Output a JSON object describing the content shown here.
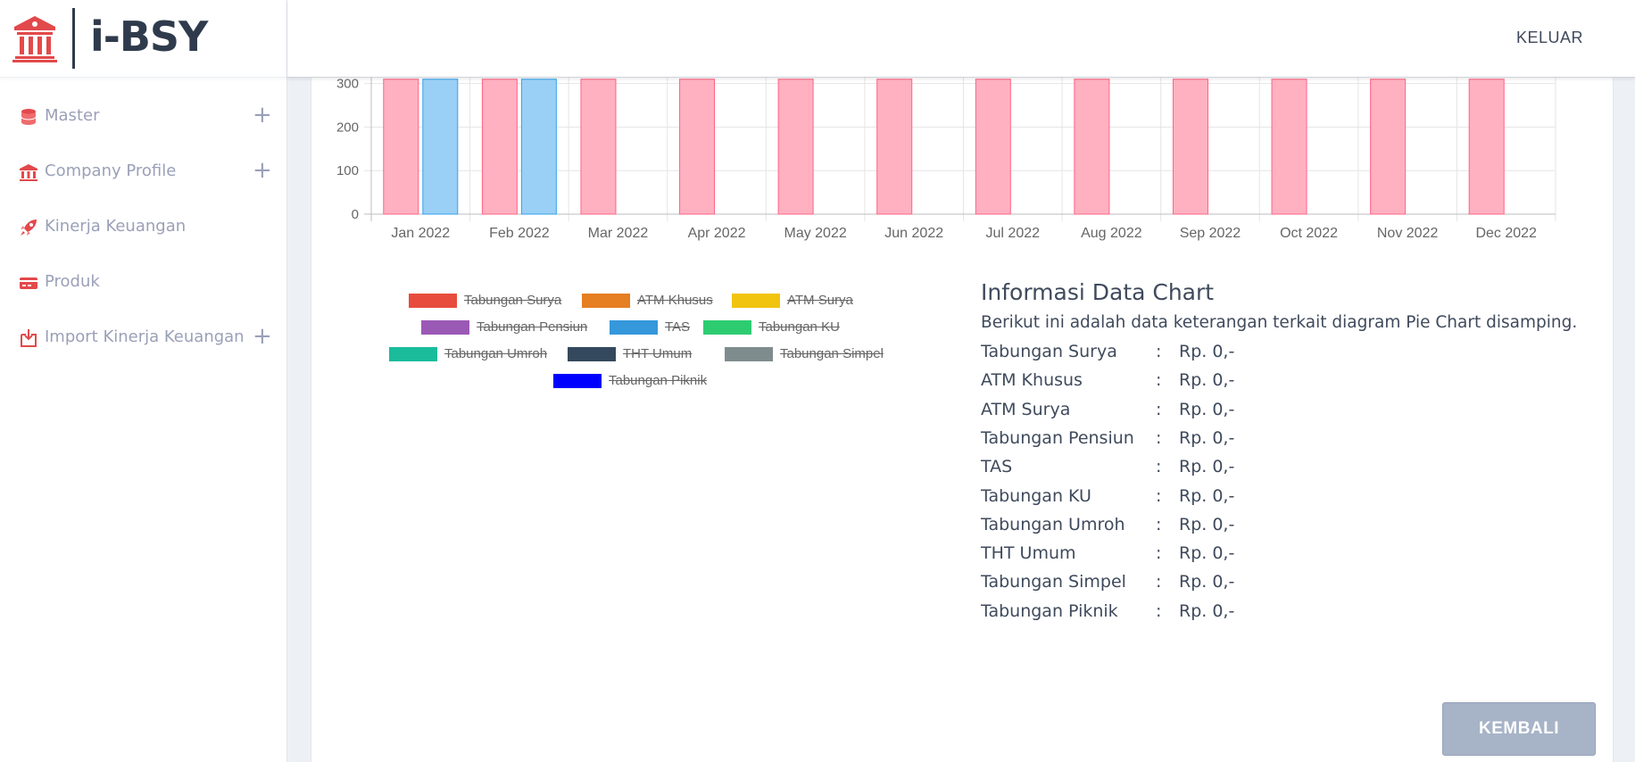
{
  "brand": {
    "name": "i-BSY"
  },
  "sidebar": {
    "items": [
      {
        "label": "Master",
        "icon": "database-icon",
        "expandable": true,
        "plus": "+"
      },
      {
        "label": "Company Profile",
        "icon": "bank-icon",
        "expandable": true,
        "plus": "+"
      },
      {
        "label": "Kinerja Keuangan",
        "icon": "rocket-icon",
        "expandable": false
      },
      {
        "label": "Produk",
        "icon": "card-icon",
        "expandable": false
      },
      {
        "label": "Import Kinerja Keuangan",
        "icon": "import-icon",
        "expandable": true,
        "plus": "+"
      }
    ],
    "accent": "#e2494b"
  },
  "topbar": {
    "logout_label": "KELUAR"
  },
  "chart_data": {
    "type": "bar",
    "categories": [
      "Jan 2022",
      "Feb 2022",
      "Mar 2022",
      "Apr 2022",
      "May 2022",
      "Jun 2022",
      "Jul 2022",
      "Aug 2022",
      "Sep 2022",
      "Oct 2022",
      "Nov 2022",
      "Dec 2022"
    ],
    "y_ticks": [
      0,
      100,
      200,
      300
    ],
    "ylim_visible": [
      0,
      310
    ],
    "grid": true,
    "series": [
      {
        "color": "#ffb1c1",
        "stroke": "#ff6384",
        "values": [
          310,
          310,
          310,
          310,
          310,
          310,
          310,
          310,
          310,
          310,
          310,
          310
        ]
      },
      {
        "color": "#9ad0f5",
        "stroke": "#36a2eb",
        "values": [
          310,
          310,
          null,
          null,
          null,
          null,
          null,
          null,
          null,
          null,
          null,
          null
        ]
      }
    ],
    "note": "top of chart scrolled out of view; bars extend beyond the visible top"
  },
  "legend": {
    "rows": [
      [
        {
          "label": "Tabungan Surya",
          "color": "#e74c3c"
        },
        {
          "label": "ATM Khusus",
          "color": "#e67e22"
        },
        {
          "label": "ATM Surya",
          "color": "#f1c40f"
        }
      ],
      [
        {
          "label": "Tabungan Pensiun",
          "color": "#9b59b6"
        },
        {
          "label": "TAS",
          "color": "#3498db"
        },
        {
          "label": "Tabungan KU",
          "color": "#2ecc71"
        }
      ],
      [
        {
          "label": "Tabungan Umroh",
          "color": "#1abc9c"
        },
        {
          "label": "THT Umum",
          "color": "#34495e"
        },
        {
          "label": "Tabungan Simpel",
          "color": "#7f8c8d"
        }
      ],
      [
        {
          "label": "Tabungan Piknik",
          "color": "#0000ff"
        }
      ]
    ]
  },
  "info": {
    "title": "Informasi Data Chart",
    "description": "Berikut ini adalah data keterangan terkait diagram Pie Chart disamping.",
    "rows": [
      {
        "name": "Tabungan Surya",
        "colon": ":",
        "value": "Rp. 0,-"
      },
      {
        "name": "ATM Khusus",
        "colon": ":",
        "value": "Rp. 0,-"
      },
      {
        "name": "ATM Surya",
        "colon": ":",
        "value": "Rp. 0,-"
      },
      {
        "name": "Tabungan Pensiun",
        "colon": ":",
        "value": "Rp. 0,-"
      },
      {
        "name": "TAS",
        "colon": ":",
        "value": "Rp. 0,-"
      },
      {
        "name": "Tabungan KU",
        "colon": ":",
        "value": "Rp. 0,-"
      },
      {
        "name": "Tabungan Umroh",
        "colon": ":",
        "value": "Rp. 0,-"
      },
      {
        "name": "THT Umum",
        "colon": ":",
        "value": "Rp. 0,-"
      },
      {
        "name": "Tabungan Simpel",
        "colon": ":",
        "value": "Rp. 0,-"
      },
      {
        "name": "Tabungan Piknik",
        "colon": ":",
        "value": "Rp. 0,-"
      }
    ]
  },
  "actions": {
    "back_label": "KEMBALI"
  }
}
